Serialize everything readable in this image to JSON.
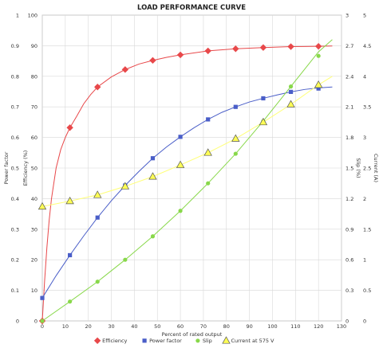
{
  "chart_data": {
    "type": "line",
    "title": "LOAD PERFORMANCE CURVE",
    "xlabel": "Percent of rated output",
    "xlim": [
      0,
      130
    ],
    "x_ticks": [
      0,
      10,
      20,
      30,
      40,
      50,
      60,
      70,
      80,
      90,
      100,
      110,
      120,
      130
    ],
    "grid": true,
    "legend": "bottom",
    "axes": {
      "power_factor": {
        "label": "Power factor",
        "min": 0,
        "max": 1,
        "ticks": [
          "0",
          "0.1",
          "0.2",
          "0.3",
          "0.4",
          "0.5",
          "0.6",
          "0.7",
          "0.8",
          "0.9",
          "1"
        ]
      },
      "efficiency": {
        "label": "Efficiency (%)",
        "min": 0,
        "max": 100,
        "ticks": [
          "0",
          "10",
          "20",
          "30",
          "40",
          "50",
          "60",
          "70",
          "80",
          "90",
          "100"
        ]
      },
      "slip": {
        "label": "Slip (%)",
        "min": 0,
        "max": 3,
        "ticks": [
          "0",
          "0.3",
          "0.6",
          "0.9",
          "1.2",
          "1.5",
          "1.8",
          "2.1",
          "2.4",
          "2.7",
          "3"
        ]
      },
      "current": {
        "label": "Current (A)",
        "min": 0,
        "max": 5,
        "ticks": [
          "0",
          "0.5",
          "1",
          "1.5",
          "2",
          "2.5",
          "3",
          "3.5",
          "4",
          "4.5",
          "5"
        ]
      }
    },
    "series": [
      {
        "name": "Efficiency",
        "axis": "efficiency",
        "color": "#e8484a",
        "marker": "diamond",
        "points": [
          [
            0,
            0
          ],
          [
            12,
            63.2
          ],
          [
            24,
            76.5
          ],
          [
            36,
            82.2
          ],
          [
            48,
            85.2
          ],
          [
            60,
            87
          ],
          [
            72,
            88.3
          ],
          [
            84,
            89
          ],
          [
            96,
            89.4
          ],
          [
            108,
            89.7
          ],
          [
            120,
            89.8
          ]
        ],
        "curve": [
          [
            0,
            0
          ],
          [
            1,
            13
          ],
          [
            2,
            24
          ],
          [
            3,
            33
          ],
          [
            4,
            40
          ],
          [
            6,
            50
          ],
          [
            8,
            56
          ],
          [
            10,
            60
          ],
          [
            12,
            63.2
          ],
          [
            15,
            67
          ],
          [
            18,
            71
          ],
          [
            21,
            74
          ],
          [
            24,
            76.5
          ],
          [
            30,
            79.8
          ],
          [
            36,
            82.2
          ],
          [
            42,
            84
          ],
          [
            48,
            85.2
          ],
          [
            54,
            86.2
          ],
          [
            60,
            87
          ],
          [
            72,
            88.3
          ],
          [
            84,
            89
          ],
          [
            96,
            89.4
          ],
          [
            108,
            89.7
          ],
          [
            120,
            89.8
          ],
          [
            126,
            89.9
          ]
        ]
      },
      {
        "name": "Power factor",
        "axis": "power_factor",
        "color": "#4a5ec8",
        "marker": "square",
        "points": [
          [
            0,
            0.075
          ],
          [
            12,
            0.215
          ],
          [
            24,
            0.338
          ],
          [
            36,
            0.443
          ],
          [
            48,
            0.532
          ],
          [
            60,
            0.602
          ],
          [
            72,
            0.659
          ],
          [
            84,
            0.7
          ],
          [
            96,
            0.728
          ],
          [
            108,
            0.749
          ],
          [
            120,
            0.76
          ]
        ],
        "curve": [
          [
            0,
            0.075
          ],
          [
            6,
            0.148
          ],
          [
            12,
            0.215
          ],
          [
            18,
            0.278
          ],
          [
            24,
            0.338
          ],
          [
            30,
            0.393
          ],
          [
            36,
            0.443
          ],
          [
            42,
            0.489
          ],
          [
            48,
            0.532
          ],
          [
            54,
            0.569
          ],
          [
            60,
            0.602
          ],
          [
            66,
            0.632
          ],
          [
            72,
            0.659
          ],
          [
            78,
            0.682
          ],
          [
            84,
            0.7
          ],
          [
            90,
            0.716
          ],
          [
            96,
            0.728
          ],
          [
            102,
            0.739
          ],
          [
            108,
            0.749
          ],
          [
            114,
            0.757
          ],
          [
            120,
            0.762
          ],
          [
            126,
            0.765
          ]
        ]
      },
      {
        "name": "Slip",
        "axis": "slip",
        "color": "#88d84a",
        "marker": "circle",
        "points": [
          [
            0,
            0
          ],
          [
            12,
            0.19
          ],
          [
            24,
            0.385
          ],
          [
            36,
            0.6
          ],
          [
            48,
            0.83
          ],
          [
            60,
            1.08
          ],
          [
            72,
            1.35
          ],
          [
            84,
            1.64
          ],
          [
            96,
            1.96
          ],
          [
            108,
            2.3
          ],
          [
            120,
            2.6
          ]
        ],
        "curve": [
          [
            0,
            0
          ],
          [
            12,
            0.19
          ],
          [
            24,
            0.385
          ],
          [
            36,
            0.6
          ],
          [
            48,
            0.83
          ],
          [
            60,
            1.08
          ],
          [
            72,
            1.35
          ],
          [
            84,
            1.64
          ],
          [
            96,
            1.96
          ],
          [
            108,
            2.3
          ],
          [
            120,
            2.64
          ],
          [
            126,
            2.76
          ]
        ]
      },
      {
        "name": "Current at 575 V",
        "axis": "current",
        "color": "#ffff66",
        "marker": "triangle",
        "points": [
          [
            0,
            1.87
          ],
          [
            12,
            1.96
          ],
          [
            24,
            2.06
          ],
          [
            36,
            2.2
          ],
          [
            48,
            2.36
          ],
          [
            60,
            2.55
          ],
          [
            72,
            2.75
          ],
          [
            84,
            2.98
          ],
          [
            96,
            3.25
          ],
          [
            108,
            3.54
          ],
          [
            120,
            3.86
          ]
        ],
        "curve": [
          [
            0,
            1.87
          ],
          [
            12,
            1.96
          ],
          [
            24,
            2.06
          ],
          [
            36,
            2.2
          ],
          [
            48,
            2.36
          ],
          [
            60,
            2.55
          ],
          [
            72,
            2.75
          ],
          [
            84,
            2.98
          ],
          [
            96,
            3.25
          ],
          [
            108,
            3.54
          ],
          [
            120,
            3.86
          ],
          [
            126,
            4.0
          ]
        ]
      }
    ]
  }
}
